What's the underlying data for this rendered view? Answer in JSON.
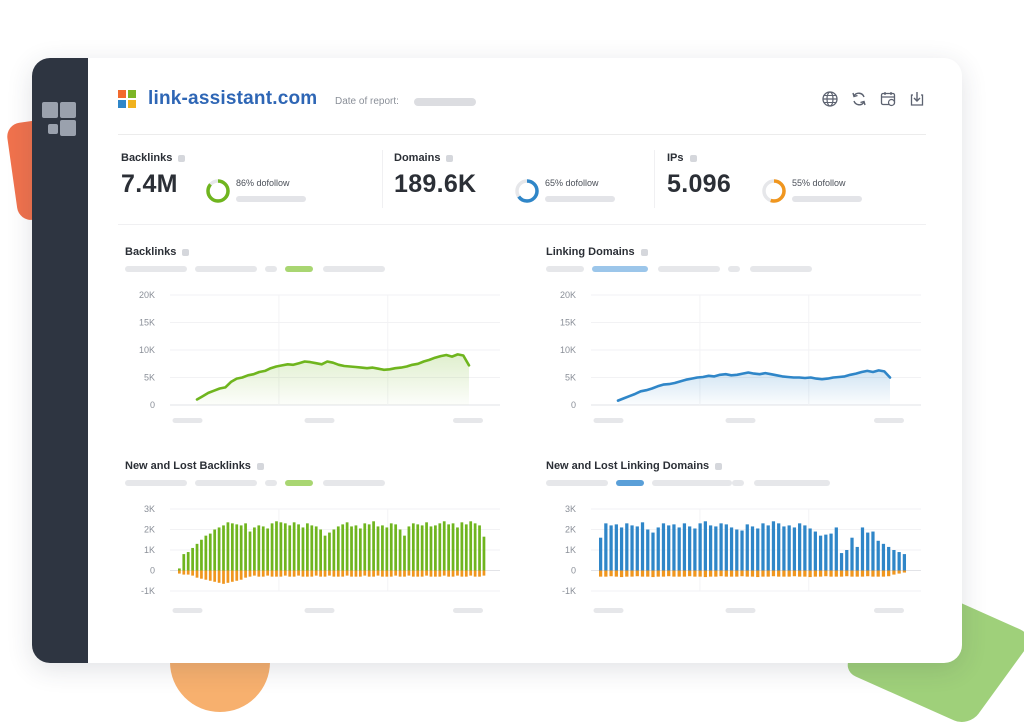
{
  "header": {
    "site_name": "link-assistant.com",
    "date_label": "Date of report:",
    "icons": [
      "globe-icon",
      "refresh-icon",
      "calendar-icon",
      "download-icon"
    ]
  },
  "stats": [
    {
      "title": "Backlinks",
      "value": "7.4M",
      "dofollow": "86% dofollow",
      "dofollow_fraction": 0.86,
      "color": "#6fb51e"
    },
    {
      "title": "Domains",
      "value": "189.6K",
      "dofollow": "65% dofollow",
      "dofollow_fraction": 0.65,
      "color": "#2f86c8"
    },
    {
      "title": "IPs",
      "value": "5.096",
      "dofollow": "55% dofollow",
      "dofollow_fraction": 0.55,
      "color": "#f0961e"
    }
  ],
  "colors": {
    "green": "#6fb51e",
    "blue": "#2f86c8",
    "orange": "#f0961e",
    "sidebar": "#2e3541",
    "brand": "#2e66b5"
  },
  "chart_data": [
    {
      "type": "area",
      "title": "Backlinks",
      "yticks": [
        "20K",
        "15K",
        "10K",
        "5K",
        "0"
      ],
      "ylim": [
        0,
        20000
      ],
      "series": [
        {
          "color": "#6fb51e",
          "values": [
            1000,
            1600,
            2200,
            2600,
            3000,
            3200,
            4200,
            4800,
            5000,
            5400,
            5600,
            6000,
            6200,
            6700,
            7000,
            7200,
            7400,
            7300,
            7600,
            7900,
            7800,
            7600,
            7400,
            7900,
            7700,
            7300,
            7100,
            7000,
            6900,
            6800,
            6700,
            6800,
            6600,
            6400,
            6500,
            6700,
            6800,
            7000,
            7300,
            7500,
            7900,
            8200,
            8600,
            8900,
            9100,
            8800,
            9200,
            9000,
            7200
          ]
        }
      ]
    },
    {
      "type": "area",
      "title": "Linking Domains",
      "yticks": [
        "20K",
        "15K",
        "10K",
        "5K",
        "0"
      ],
      "ylim": [
        0,
        20000
      ],
      "series": [
        {
          "color": "#2f86c8",
          "values": [
            800,
            1200,
            1600,
            2000,
            2500,
            2700,
            3000,
            3400,
            3700,
            3800,
            4000,
            4300,
            4600,
            4800,
            5000,
            5100,
            5300,
            5200,
            5500,
            5600,
            5400,
            5500,
            5700,
            5900,
            5700,
            5600,
            5800,
            5600,
            5400,
            5200,
            5100,
            5000,
            5000,
            4900,
            5000,
            4800,
            4700,
            4800,
            5000,
            5100,
            5200,
            5500,
            5700,
            6000,
            6200,
            6000,
            6300,
            6100,
            5000
          ]
        }
      ]
    },
    {
      "type": "bar",
      "title": "New and Lost Backlinks",
      "yticks": [
        "3K",
        "2K",
        "1K",
        "0",
        "-1K"
      ],
      "ylim": [
        -1000,
        3000
      ],
      "series": [
        {
          "color": "#6fb51e",
          "values": [
            100,
            800,
            900,
            1100,
            1300,
            1500,
            1700,
            1800,
            2000,
            2100,
            2200,
            2350,
            2300,
            2250,
            2200,
            2300,
            1900,
            2100,
            2200,
            2150,
            2050,
            2300,
            2400,
            2350,
            2300,
            2200,
            2350,
            2250,
            2100,
            2300,
            2200,
            2150,
            2000,
            1700,
            1850,
            2000,
            2150,
            2250,
            2350,
            2150,
            2200,
            2050,
            2300,
            2250,
            2400,
            2150,
            2200,
            2100,
            2300,
            2250,
            2000,
            1700,
            2150,
            2300,
            2250,
            2200,
            2350,
            2150,
            2200,
            2300,
            2400,
            2250,
            2300,
            2100,
            2350,
            2250,
            2400,
            2300,
            2200,
            1650
          ]
        },
        {
          "color": "#f0961e",
          "values": [
            -150,
            -200,
            -200,
            -250,
            -350,
            -400,
            -450,
            -500,
            -550,
            -600,
            -650,
            -600,
            -550,
            -500,
            -450,
            -350,
            -300,
            -250,
            -300,
            -300,
            -250,
            -300,
            -300,
            -300,
            -250,
            -300,
            -300,
            -250,
            -300,
            -300,
            -300,
            -250,
            -300,
            -300,
            -250,
            -300,
            -300,
            -300,
            -250,
            -300,
            -300,
            -300,
            -250,
            -300,
            -300,
            -250,
            -300,
            -300,
            -300,
            -250,
            -300,
            -300,
            -250,
            -300,
            -300,
            -300,
            -250,
            -300,
            -300,
            -300,
            -250,
            -300,
            -300,
            -250,
            -300,
            -300,
            -250,
            -300,
            -300,
            -250
          ]
        }
      ]
    },
    {
      "type": "bar",
      "title": "New and Lost Linking Domains",
      "yticks": [
        "3K",
        "2K",
        "1K",
        "0",
        "-1K"
      ],
      "ylim": [
        -1000,
        3000
      ],
      "series": [
        {
          "color": "#2f86c8",
          "values": [
            1600,
            2300,
            2200,
            2250,
            2100,
            2300,
            2200,
            2150,
            2350,
            2000,
            1850,
            2100,
            2300,
            2200,
            2250,
            2100,
            2300,
            2150,
            2050,
            2300,
            2400,
            2200,
            2150,
            2300,
            2250,
            2100,
            2000,
            1950,
            2250,
            2150,
            2050,
            2300,
            2200,
            2400,
            2300,
            2150,
            2200,
            2100,
            2300,
            2200,
            2050,
            1900,
            1700,
            1750,
            1800,
            2100,
            850,
            1000,
            1600,
            1150,
            2100,
            1850,
            1900,
            1450,
            1300,
            1150,
            1000,
            900,
            800
          ]
        },
        {
          "color": "#f0961e",
          "values": [
            -300,
            -300,
            -280,
            -300,
            -320,
            -300,
            -300,
            -280,
            -300,
            -300,
            -320,
            -300,
            -300,
            -280,
            -300,
            -300,
            -300,
            -280,
            -300,
            -300,
            -320,
            -300,
            -300,
            -280,
            -300,
            -300,
            -300,
            -280,
            -300,
            -300,
            -320,
            -300,
            -300,
            -280,
            -300,
            -300,
            -300,
            -280,
            -300,
            -300,
            -320,
            -300,
            -300,
            -280,
            -300,
            -300,
            -300,
            -280,
            -300,
            -300,
            -300,
            -280,
            -300,
            -300,
            -300,
            -280,
            -200,
            -150,
            -100
          ]
        }
      ]
    }
  ]
}
